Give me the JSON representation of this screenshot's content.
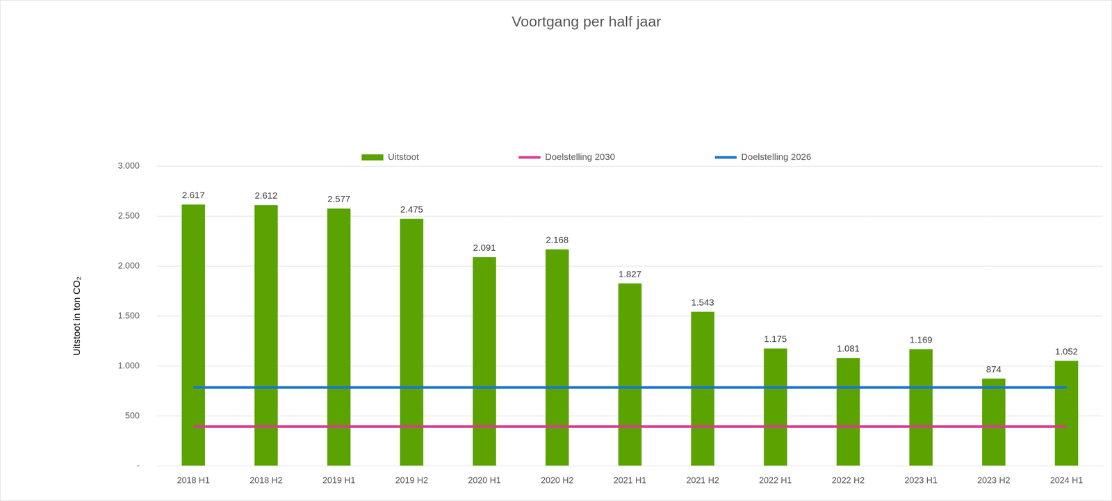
{
  "chart_data": {
    "type": "bar",
    "title": "Voortgang per half jaar",
    "y_label": "Uitstoot in ton CO₂",
    "categories": [
      "2018 H1",
      "2018 H2",
      "2019 H1",
      "2019 H2",
      "2020 H1",
      "2020 H2",
      "2021 H1",
      "2021 H2",
      "2022 H1",
      "2022 H2",
      "2023 H1",
      "2023 H2",
      "2024 H1"
    ],
    "series": [
      {
        "name": "Uitstoot",
        "type": "bar",
        "color": "#5ba300",
        "values": [
          2617,
          2612,
          2577,
          2475,
          2091,
          2168,
          1827,
          1543,
          1175,
          1081,
          1169,
          874,
          1052
        ],
        "value_labels": [
          "2.617",
          "2.612",
          "2.577",
          "2.475",
          "2.091",
          "2.168",
          "1.827",
          "1.543",
          "1.175",
          "1.081",
          "1.169",
          "874",
          "1.052"
        ],
        "data_labels": true
      },
      {
        "name": "Doelstelling 2030",
        "type": "line",
        "color": "#d63f8c",
        "values": [
          393,
          393,
          393,
          393,
          393,
          393,
          393,
          393,
          393,
          393,
          393,
          393,
          393
        ]
      },
      {
        "name": "Doelstelling 2026",
        "type": "line",
        "color": "#1a75cf",
        "values": [
          785,
          785,
          785,
          785,
          785,
          785,
          785,
          785,
          785,
          785,
          785,
          785,
          785
        ]
      }
    ],
    "ylim": [
      0,
      3000
    ],
    "yticks": [
      {
        "value": 0,
        "label": "-"
      },
      500,
      {
        "value": 1000,
        "label": "1.000"
      },
      {
        "value": 1500,
        "label": "1.500"
      },
      {
        "value": 2000,
        "label": "2.000"
      },
      {
        "value": 2500,
        "label": "2.500"
      },
      {
        "value": 3000,
        "label": "3.000"
      }
    ],
    "grid": true,
    "legend": "top"
  }
}
